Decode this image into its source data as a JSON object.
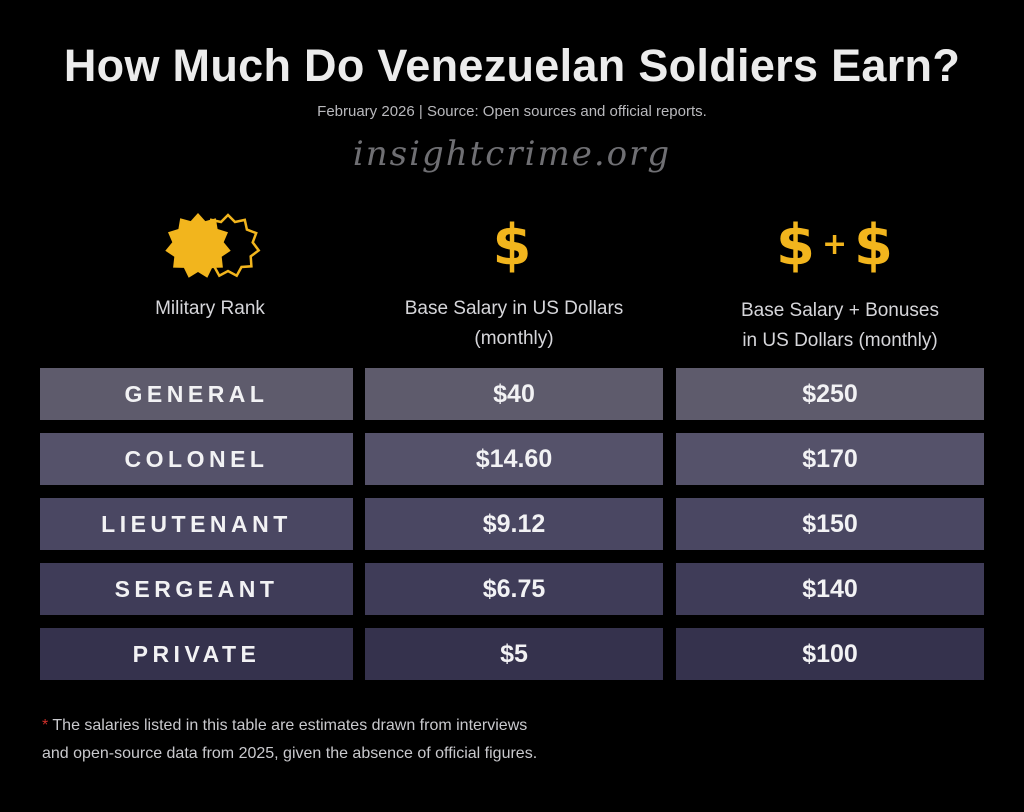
{
  "title": "How Much Do Venezuelan Soldiers Earn?",
  "subtitle": "February 2026 | Source: Open sources and official reports.",
  "watermark": "insightcrime.org",
  "accent_color": "#f2b51d",
  "columns": [
    {
      "icon": "rank-badge-icon",
      "label": "Military Rank"
    },
    {
      "icon": "dollar-icon",
      "label_line1": "Base Salary in US Dollars",
      "label_line2": "(monthly)"
    },
    {
      "icon": "dollar-plus-dollar-icon",
      "label_line1": "Base Salary + Bonuses",
      "label_line2": "in US Dollars (monthly)"
    }
  ],
  "icons": {
    "dollar": "$",
    "plus": "+"
  },
  "chart_data": {
    "type": "table",
    "title": "How Much Do Venezuelan Soldiers Earn?",
    "columns": [
      "Military Rank",
      "Base Salary in US Dollars (monthly)",
      "Base Salary + Bonuses in US Dollars (monthly)"
    ],
    "rows": [
      {
        "rank": "GENERAL",
        "base": "$40",
        "bonus": "$250",
        "base_value": 40,
        "bonus_value": 250
      },
      {
        "rank": "COLONEL",
        "base": "$14.60",
        "bonus": "$170",
        "base_value": 14.6,
        "bonus_value": 170
      },
      {
        "rank": "LIEUTENANT",
        "base": "$9.12",
        "bonus": "$150",
        "base_value": 9.12,
        "bonus_value": 150
      },
      {
        "rank": "SERGEANT",
        "base": "$6.75",
        "bonus": "$140",
        "base_value": 6.75,
        "bonus_value": 140
      },
      {
        "rank": "PRIVATE",
        "base": "$5",
        "bonus": "$100",
        "base_value": 5,
        "bonus_value": 100
      }
    ],
    "row_colors": [
      "#5e5b6c",
      "#55526a",
      "#4a4762",
      "#3f3c58",
      "#35324d"
    ]
  },
  "footnote": {
    "asterisk": "*",
    "line1": "The salaries listed in this table are estimates drawn from interviews",
    "line2": "and open-source data from 2025, given the absence of official figures."
  }
}
